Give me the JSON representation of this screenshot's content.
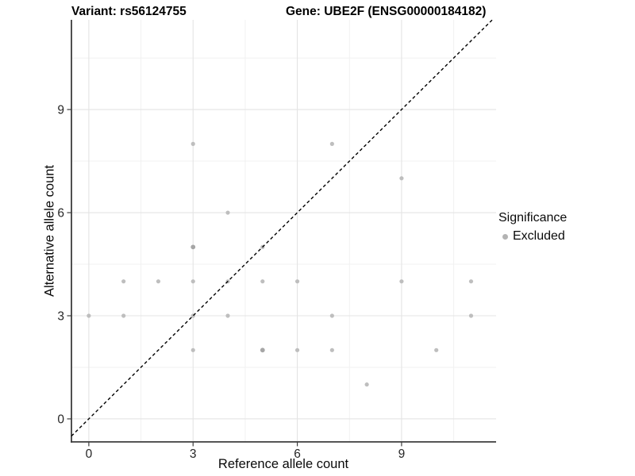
{
  "chart_data": {
    "type": "scatter",
    "titles": {
      "left": "Variant: rs56124755",
      "right": "Gene: UBE2F (ENSG00000184182)"
    },
    "xlabel": "Reference allele count",
    "ylabel": "Alternative allele count",
    "x_ticks": [
      0,
      3,
      6,
      9
    ],
    "y_ticks": [
      0,
      3,
      6,
      9
    ],
    "x_minor_gridlines": [
      1.5,
      4.5,
      7.5,
      10.5
    ],
    "y_minor_gridlines": [
      1.5,
      4.5,
      7.5,
      10.5
    ],
    "xlim": [
      -0.5,
      11.72
    ],
    "ylim": [
      -0.67,
      11.61
    ],
    "grid": true,
    "identity_line": {
      "style": "dashed",
      "color": "#000000",
      "slope": 1,
      "intercept": 0
    },
    "series": [
      {
        "name": "Excluded",
        "marker_color": "#bebebe",
        "overplot_color": "#a6a6a6",
        "points": [
          [
            0,
            3
          ],
          [
            1,
            3
          ],
          [
            1,
            4
          ],
          [
            2,
            4
          ],
          [
            3,
            2
          ],
          [
            3,
            3
          ],
          [
            3,
            4
          ],
          [
            3,
            5
          ],
          [
            3,
            8
          ],
          [
            4,
            3
          ],
          [
            4,
            4
          ],
          [
            4,
            6
          ],
          [
            5,
            2
          ],
          [
            5,
            4
          ],
          [
            5,
            5
          ],
          [
            6,
            2
          ],
          [
            6,
            4
          ],
          [
            7,
            2
          ],
          [
            7,
            3
          ],
          [
            7,
            8
          ],
          [
            8,
            1
          ],
          [
            9,
            4
          ],
          [
            9,
            7
          ],
          [
            10,
            2
          ],
          [
            11,
            3
          ],
          [
            11,
            4
          ]
        ],
        "overplotted": [
          [
            3,
            5
          ],
          [
            5,
            2
          ]
        ]
      }
    ],
    "legend": {
      "title": "Significance",
      "position": "right",
      "items": [
        {
          "label": "Excluded",
          "marker_color": "#b3b3b3"
        }
      ]
    }
  },
  "colors": {
    "background": "#ffffff",
    "axis_line": "#3d3d3d",
    "tick_mark": "#3d3d3d",
    "tick_label": "#262626",
    "major_grid": "#e4e4e4",
    "minor_grid": "#f1f1f1",
    "title_text": "#000000"
  }
}
